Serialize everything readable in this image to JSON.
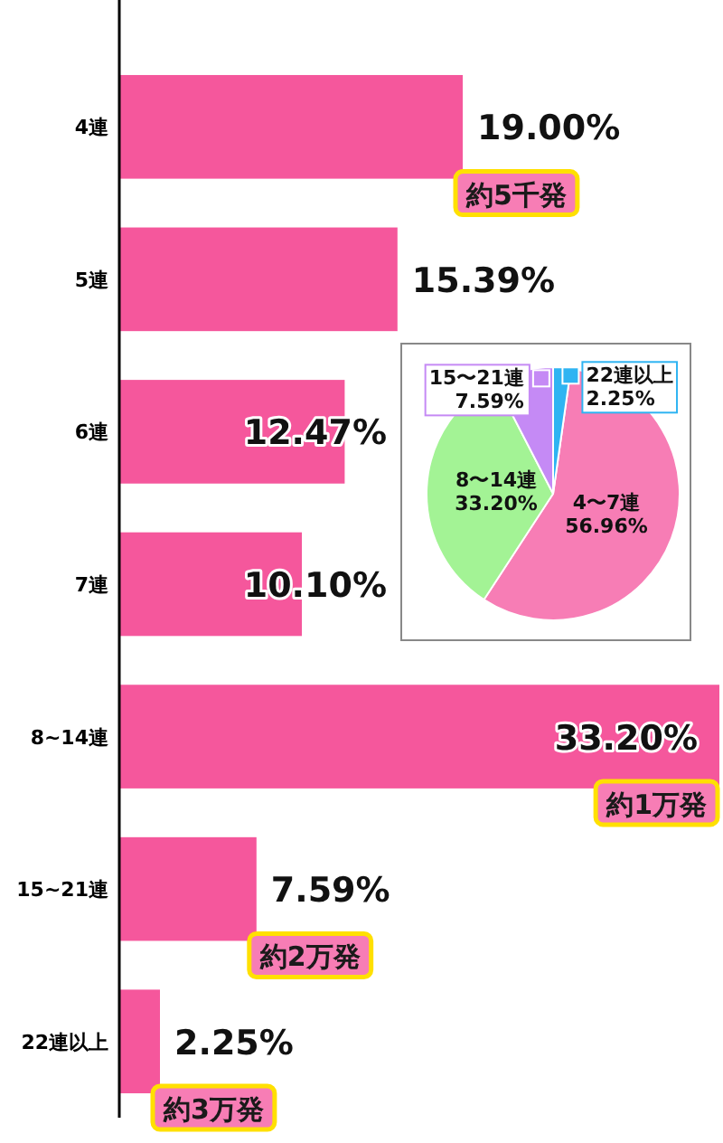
{
  "chart_data": [
    {
      "type": "bar",
      "orientation": "horizontal",
      "color": "#f5579c",
      "categories": [
        "4連",
        "5連",
        "6連",
        "7連",
        "8~14連",
        "15~21連",
        "22連以上"
      ],
      "values": [
        19.0,
        15.39,
        12.47,
        10.1,
        33.2,
        7.59,
        2.25
      ],
      "value_labels": [
        "19.00%",
        "15.39%",
        "12.47%",
        "10.10%",
        "33.20%",
        "7.59%",
        "2.25%"
      ],
      "annotations": [
        {
          "text": "約5千発",
          "x": 19.0,
          "y": "4連"
        },
        {
          "text": "約1万発",
          "x": 33.2,
          "y": "8~14連"
        },
        {
          "text": "約2万発",
          "x": 7.59,
          "y": "15~21連"
        },
        {
          "text": "約3万発",
          "x": 2.25,
          "y": "22連以上"
        }
      ]
    },
    {
      "type": "pie",
      "categories": [
        "4〜7連",
        "8〜14連",
        "15〜21連",
        "22連以上"
      ],
      "values": [
        56.96,
        33.2,
        7.59,
        2.25
      ],
      "colors": [
        "#f77db5",
        "#a3f395",
        "#c58af5",
        "#2fb4f2"
      ],
      "value_labels": [
        "56.96%",
        "33.20%",
        "7.59%",
        "2.25%"
      ]
    }
  ]
}
